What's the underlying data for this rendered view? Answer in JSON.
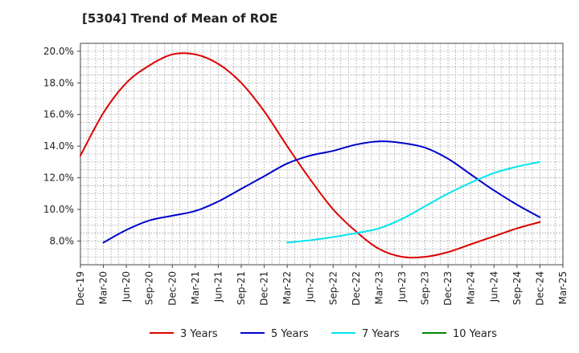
{
  "header": {
    "title": "[5304]  Trend of Mean of ROE"
  },
  "chart_data": {
    "type": "line",
    "title": "[5304]  Trend of Mean of ROE",
    "xlabel": "",
    "ylabel": "",
    "ylim": [
      6.5,
      20.5
    ],
    "y_ticks": [
      8,
      10,
      12,
      14,
      16,
      18,
      20
    ],
    "y_tick_labels": [
      "8.0%",
      "10.0%",
      "12.0%",
      "14.0%",
      "16.0%",
      "18.0%",
      "20.0%"
    ],
    "x_tick_labels": [
      "Dec-19",
      "Mar-20",
      "Jun-20",
      "Sep-20",
      "Dec-20",
      "Mar-21",
      "Jun-21",
      "Sep-21",
      "Dec-21",
      "Mar-22",
      "Jun-22",
      "Sep-22",
      "Dec-22",
      "Mar-23",
      "Jun-23",
      "Sep-23",
      "Dec-23",
      "Mar-24",
      "Jun-24",
      "Sep-24",
      "Dec-24",
      "Mar-25"
    ],
    "grid": true,
    "legend_position": "bottom",
    "series": [
      {
        "name": "3 Years",
        "color": "#dd0000",
        "x": [
          "Dec-19",
          "Mar-20",
          "Jun-20",
          "Sep-20",
          "Dec-20",
          "Mar-21",
          "Jun-21",
          "Sep-21",
          "Dec-21",
          "Mar-22",
          "Jun-22",
          "Sep-22",
          "Dec-22",
          "Mar-23",
          "Jun-23",
          "Sep-23",
          "Dec-23",
          "Mar-24",
          "Jun-24",
          "Sep-24",
          "Dec-24"
        ],
        "values": [
          13.4,
          16.1,
          18.0,
          19.1,
          19.8,
          19.8,
          19.2,
          18.0,
          16.2,
          14.0,
          11.9,
          10.0,
          8.6,
          7.5,
          7.0,
          7.0,
          7.3,
          7.8,
          8.3,
          8.8,
          9.2
        ]
      },
      {
        "name": "5 Years",
        "color": "#0000cc",
        "x": [
          "Mar-20",
          "Jun-20",
          "Sep-20",
          "Dec-20",
          "Mar-21",
          "Jun-21",
          "Sep-21",
          "Dec-21",
          "Mar-22",
          "Jun-22",
          "Sep-22",
          "Dec-22",
          "Mar-23",
          "Jun-23",
          "Sep-23",
          "Dec-23",
          "Mar-24",
          "Jun-24",
          "Sep-24",
          "Dec-24"
        ],
        "values": [
          7.9,
          8.7,
          9.3,
          9.6,
          9.9,
          10.5,
          11.3,
          12.1,
          12.9,
          13.4,
          13.7,
          14.1,
          14.3,
          14.2,
          13.9,
          13.2,
          12.2,
          11.2,
          10.3,
          9.5
        ]
      },
      {
        "name": "7 Years",
        "color": "#00e5ee",
        "x": [
          "Mar-22",
          "Jun-22",
          "Sep-22",
          "Dec-22",
          "Mar-23",
          "Jun-23",
          "Sep-23",
          "Dec-23",
          "Mar-24",
          "Jun-24",
          "Sep-24",
          "Dec-24"
        ],
        "values": [
          7.9,
          8.05,
          8.25,
          8.5,
          8.8,
          9.4,
          10.2,
          11.0,
          11.7,
          12.3,
          12.7,
          13.0
        ]
      },
      {
        "name": "10 Years",
        "color": "#008800",
        "x": [],
        "values": []
      }
    ]
  }
}
